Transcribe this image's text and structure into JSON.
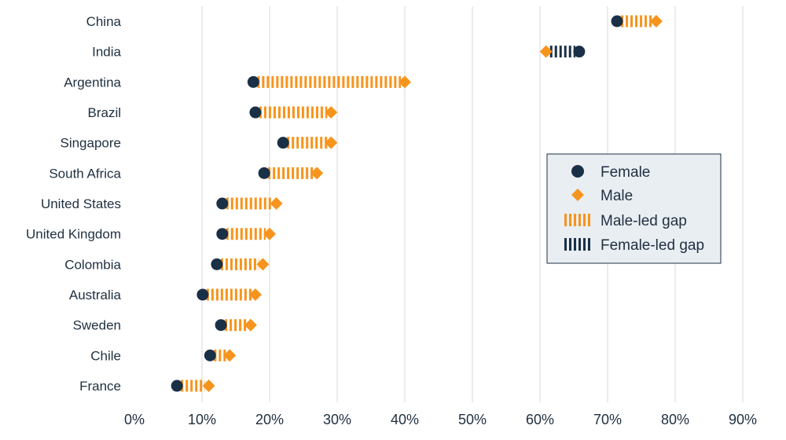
{
  "chart_data": {
    "type": "dumbbell",
    "categories": [
      "China",
      "India",
      "Argentina",
      "Brazil",
      "Singapore",
      "South Africa",
      "United States",
      "United Kingdom",
      "Colombia",
      "Australia",
      "Sweden",
      "Chile",
      "France"
    ],
    "series": [
      {
        "name": "Female",
        "values": [
          71.4,
          65.8,
          17.6,
          17.9,
          22.0,
          19.2,
          13.0,
          13.0,
          12.2,
          10.1,
          12.8,
          11.2,
          6.3
        ]
      },
      {
        "name": "Male",
        "values": [
          77.2,
          60.9,
          40.0,
          29.1,
          29.1,
          27.0,
          21.0,
          20.0,
          19.0,
          17.9,
          17.2,
          14.1,
          11.0
        ]
      }
    ],
    "xlim": [
      0,
      90
    ],
    "xticks": [
      "0%",
      "10%",
      "20%",
      "30%",
      "40%",
      "50%",
      "60%",
      "70%",
      "80%",
      "90%"
    ],
    "grid": true,
    "legend": {
      "placement": "right",
      "entries": [
        "Female",
        "Male",
        "Male-led gap",
        "Female-led gap"
      ]
    },
    "colors": {
      "female": "#1a3047",
      "male": "#f7941d",
      "grid": "#d9d9d9",
      "legend_bg": "#e9eef3"
    }
  }
}
